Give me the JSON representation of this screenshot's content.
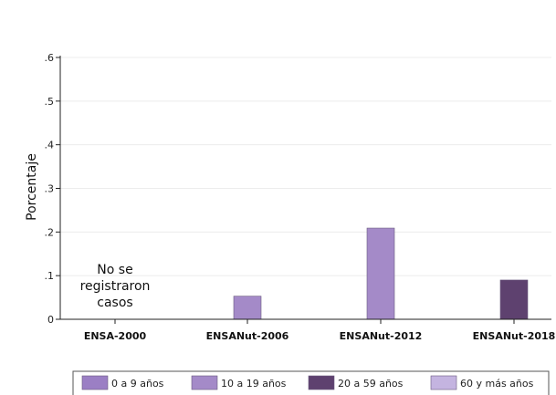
{
  "chart_data": {
    "type": "bar",
    "categories": [
      "ENSA-2000",
      "ENSANut-2006",
      "ENSANut-2012",
      "ENSANut-2018"
    ],
    "ylabel": "Porcentaje",
    "xlabel": "",
    "ylim": [
      0,
      0.6
    ],
    "yticks": [
      0,
      0.1,
      0.2,
      0.3,
      0.4,
      0.5,
      0.6
    ],
    "ytick_labels": [
      "0",
      ".1",
      ".2",
      ".3",
      ".4",
      ".5",
      ".6"
    ],
    "grid": true,
    "legend_position": "bottom",
    "series": [
      {
        "name": "0 a 9 años",
        "color": "#9b7fc4",
        "values": [
          0,
          0,
          0,
          0
        ]
      },
      {
        "name": "10 a 19 años",
        "color": "#a48ac8",
        "values": [
          0,
          0.053,
          0.209,
          0
        ]
      },
      {
        "name": "20 a 59 años",
        "color": "#5e416f",
        "values": [
          0,
          0,
          0,
          0.09
        ]
      },
      {
        "name": "60 y más años",
        "color": "#c4b4e0",
        "values": [
          0,
          0,
          0,
          0
        ]
      }
    ],
    "annotations": [
      {
        "category": "ENSA-2000",
        "lines": [
          "No se",
          "registraron",
          "casos"
        ]
      }
    ]
  }
}
